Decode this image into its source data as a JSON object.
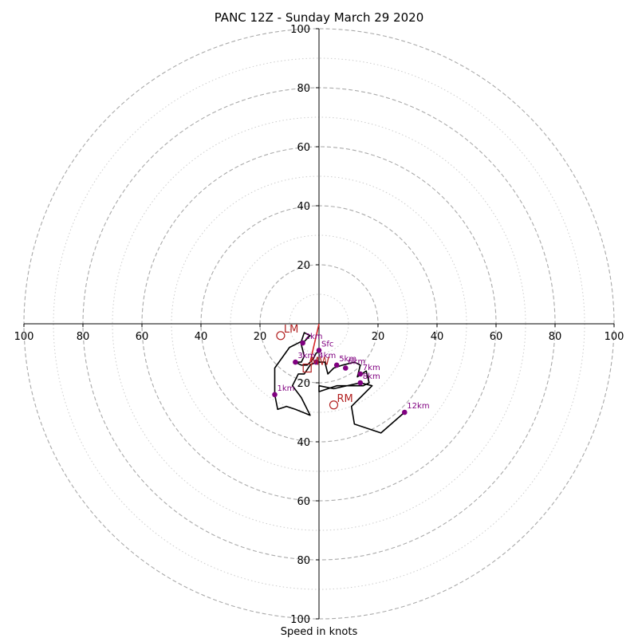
{
  "chart_data": {
    "type": "hodograph",
    "title": "PANC 12Z - Sunday March 29 2020",
    "xlabel": "Speed in knots",
    "units": "knots",
    "max_speed": 100,
    "ring_dashed": [
      20,
      40,
      60,
      80,
      100
    ],
    "ring_dotted": [
      10,
      30,
      50,
      70,
      90
    ],
    "x_ticks": [
      {
        "value": -100,
        "label": "100"
      },
      {
        "value": -80,
        "label": "80"
      },
      {
        "value": -60,
        "label": "60"
      },
      {
        "value": -40,
        "label": "40"
      },
      {
        "value": -20,
        "label": "20"
      },
      {
        "value": 20,
        "label": "20"
      },
      {
        "value": 40,
        "label": "40"
      },
      {
        "value": 60,
        "label": "60"
      },
      {
        "value": 80,
        "label": "80"
      },
      {
        "value": 100,
        "label": "100"
      }
    ],
    "y_ticks": [
      {
        "value": 100,
        "label": "100"
      },
      {
        "value": 80,
        "label": "80"
      },
      {
        "value": 60,
        "label": "60"
      },
      {
        "value": 40,
        "label": "40"
      },
      {
        "value": 20,
        "label": "20"
      },
      {
        "value": -20,
        "label": "20"
      },
      {
        "value": -40,
        "label": "40"
      },
      {
        "value": -60,
        "label": "60"
      },
      {
        "value": -80,
        "label": "80"
      },
      {
        "value": -100,
        "label": "100"
      }
    ],
    "hodograph_trace": [
      [
        0.5,
        -9
      ],
      [
        -1,
        -10
      ],
      [
        -2,
        -12
      ],
      [
        -4,
        -14
      ],
      [
        -6,
        -14
      ],
      [
        -8,
        -13
      ],
      [
        -6,
        -13
      ],
      [
        -5,
        -11
      ],
      [
        -6,
        -7
      ],
      [
        -3,
        -4
      ],
      [
        -5,
        -3
      ],
      [
        -6,
        -6
      ],
      [
        -10,
        -8
      ],
      [
        -15,
        -15
      ],
      [
        -15,
        -24
      ],
      [
        -14,
        -29
      ],
      [
        -11,
        -28
      ],
      [
        -8,
        -29
      ],
      [
        -3,
        -31
      ],
      [
        -6,
        -25
      ],
      [
        -9,
        -21
      ],
      [
        -7,
        -17
      ],
      [
        -5,
        -17
      ],
      [
        -3,
        -14
      ],
      [
        -1,
        -13
      ],
      [
        2,
        -13
      ],
      [
        3,
        -17
      ],
      [
        5,
        -15
      ],
      [
        8,
        -14
      ],
      [
        12,
        -13
      ],
      [
        14,
        -14
      ],
      [
        13,
        -18
      ],
      [
        16,
        -16
      ],
      [
        17,
        -20
      ],
      [
        15,
        -21
      ],
      [
        10,
        -21
      ],
      [
        6,
        -21
      ],
      [
        0,
        -23
      ],
      [
        0,
        -21
      ],
      [
        5,
        -22
      ],
      [
        14,
        -20
      ],
      [
        18,
        -21
      ],
      [
        14,
        -25
      ],
      [
        11,
        -28
      ],
      [
        12,
        -34
      ],
      [
        21,
        -37
      ],
      [
        29,
        -30
      ]
    ],
    "height_markers": [
      {
        "label": "Sfc",
        "u": 0,
        "v": -9
      },
      {
        "label": "1km",
        "u": -15,
        "v": -24
      },
      {
        "label": "2km",
        "u": -5.5,
        "v": -6.5
      },
      {
        "label": "3km",
        "u": -8,
        "v": -13
      },
      {
        "label": "4km",
        "u": -1,
        "v": -13
      },
      {
        "label": "5km",
        "u": 6,
        "v": -14
      },
      {
        "label": "6km",
        "u": 9,
        "v": -15
      },
      {
        "label": "7km",
        "u": 14,
        "v": -17
      },
      {
        "label": "8km",
        "u": 14,
        "v": -20
      },
      {
        "label": "12km",
        "u": 29,
        "v": -30
      }
    ],
    "storm_motion": [
      {
        "label": "LM",
        "u": -13,
        "v": -4,
        "marker": "circle"
      },
      {
        "label": "RM",
        "u": 5,
        "v": -27.5,
        "marker": "circle"
      },
      {
        "label": "MW",
        "u": -4,
        "v": -15,
        "marker": "square"
      }
    ],
    "shear_vector": {
      "from": [
        0,
        0
      ],
      "to": [
        -3,
        -13
      ]
    },
    "colors": {
      "trace": "#000000",
      "markers": "#800080",
      "storm_motion": "#b22222",
      "shear_vector": "#d62728",
      "dashed_ring": "#aaaaaa",
      "dotted_ring": "#cccccc"
    }
  }
}
